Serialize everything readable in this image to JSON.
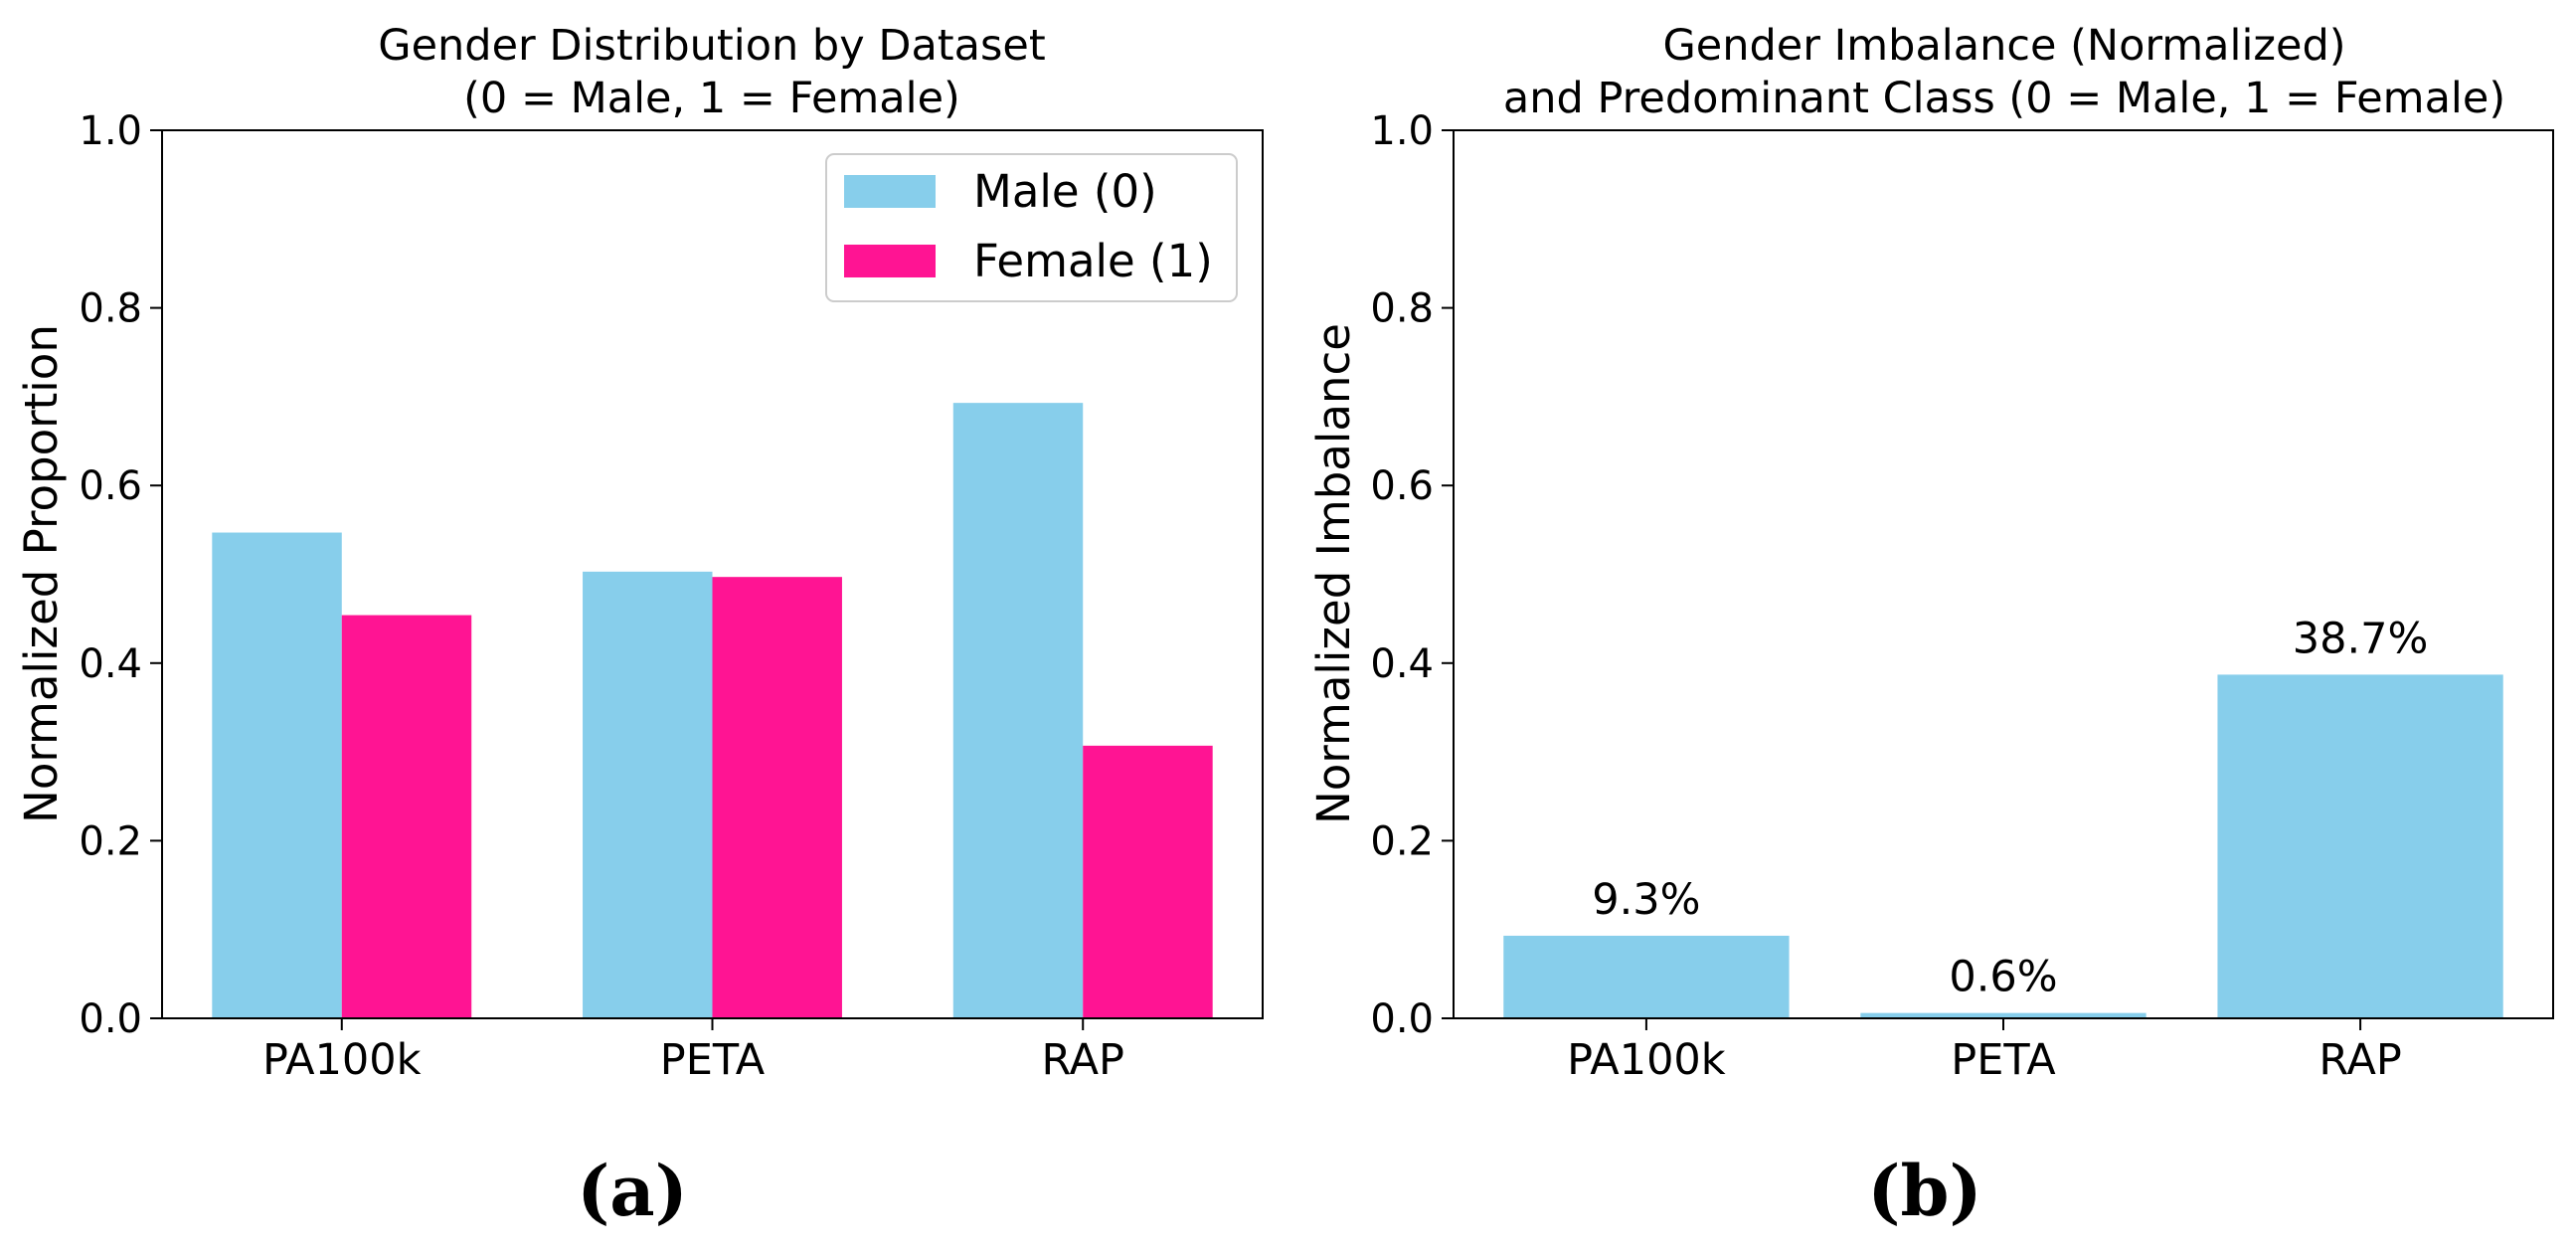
{
  "colors": {
    "male": "#87CEEB",
    "female": "#FF1493",
    "imbalance": "#87CEEB"
  },
  "chart_data": [
    {
      "type": "bar",
      "title": "Gender Distribution by Dataset",
      "subtitle": "(0 = Male, 1 = Female)",
      "xlabel": "",
      "ylabel": "Normalized Proportion",
      "ylim": [
        0,
        1.0
      ],
      "yticks": [
        "0.0",
        "0.2",
        "0.4",
        "0.6",
        "0.8",
        "1.0"
      ],
      "categories": [
        "PA100k",
        "PETA",
        "RAP"
      ],
      "series": [
        {
          "name": "Male (0)",
          "values": [
            0.547,
            0.503,
            0.693
          ]
        },
        {
          "name": "Female (1)",
          "values": [
            0.454,
            0.497,
            0.307
          ]
        }
      ],
      "legend": "top-right",
      "caption": "(a)"
    },
    {
      "type": "bar",
      "title": "Gender Imbalance (Normalized)",
      "subtitle": "and Predominant Class (0 = Male, 1 = Female)",
      "xlabel": "",
      "ylabel": "Normalized Imbalance",
      "ylim": [
        0,
        1.0
      ],
      "yticks": [
        "0.0",
        "0.2",
        "0.4",
        "0.6",
        "0.8",
        "1.0"
      ],
      "categories": [
        "PA100k",
        "PETA",
        "RAP"
      ],
      "values": [
        0.093,
        0.006,
        0.387
      ],
      "data_labels": [
        "9.3%",
        "0.6%",
        "38.7%"
      ],
      "caption": "(b)"
    }
  ]
}
